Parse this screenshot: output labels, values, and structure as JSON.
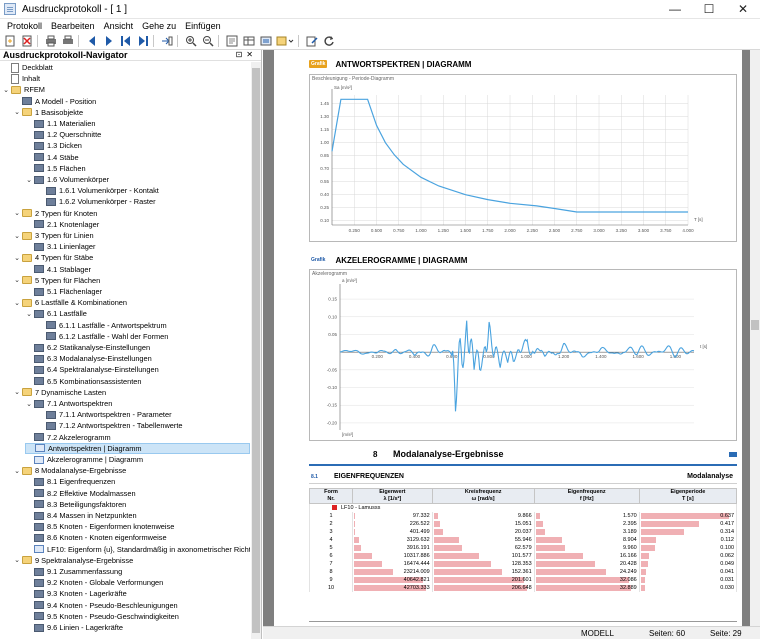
{
  "window": {
    "title": "Ausdruckprotokoll - [ 1 ]",
    "min": "—",
    "max": "☐",
    "close": "✕"
  },
  "menu": [
    "Protokoll",
    "Bearbeiten",
    "Ansicht",
    "Gehe zu",
    "Einfügen"
  ],
  "navigator": {
    "title": "Ausdruckprotokoll-Navigator",
    "items": [
      {
        "label": "Deckblatt",
        "level": 0,
        "icon": "page",
        "exp": ""
      },
      {
        "label": "Inhalt",
        "level": 0,
        "icon": "page",
        "exp": ""
      },
      {
        "label": "RFEM",
        "level": 0,
        "icon": "folder-rfem",
        "exp": "⌄"
      },
      {
        "label": "A Modell - Position",
        "level": 1,
        "icon": "tbl",
        "exp": ""
      },
      {
        "label": "1 Basisobjekte",
        "level": 1,
        "icon": "folder",
        "exp": "⌄"
      },
      {
        "label": "1.1 Materialien",
        "level": 2,
        "icon": "tbl",
        "exp": ""
      },
      {
        "label": "1.2 Querschnitte",
        "level": 2,
        "icon": "tbl",
        "exp": ""
      },
      {
        "label": "1.3 Dicken",
        "level": 2,
        "icon": "tbl",
        "exp": ""
      },
      {
        "label": "1.4 Stäbe",
        "level": 2,
        "icon": "tbl",
        "exp": ""
      },
      {
        "label": "1.5 Flächen",
        "level": 2,
        "icon": "tbl",
        "exp": ""
      },
      {
        "label": "1.6 Volumenkörper",
        "level": 2,
        "icon": "tbl",
        "exp": "⌄"
      },
      {
        "label": "1.6.1 Volumenkörper - Kontakt",
        "level": 3,
        "icon": "tbl",
        "exp": ""
      },
      {
        "label": "1.6.2 Volumenkörper - Raster",
        "level": 3,
        "icon": "tbl",
        "exp": ""
      },
      {
        "label": "2 Typen für Knoten",
        "level": 1,
        "icon": "folder",
        "exp": "⌄"
      },
      {
        "label": "2.1 Knotenlager",
        "level": 2,
        "icon": "tbl",
        "exp": ""
      },
      {
        "label": "3 Typen für Linien",
        "level": 1,
        "icon": "folder",
        "exp": "⌄"
      },
      {
        "label": "3.1 Linienlager",
        "level": 2,
        "icon": "tbl",
        "exp": ""
      },
      {
        "label": "4 Typen für Stäbe",
        "level": 1,
        "icon": "folder",
        "exp": "⌄"
      },
      {
        "label": "4.1 Stablager",
        "level": 2,
        "icon": "tbl",
        "exp": ""
      },
      {
        "label": "5 Typen für Flächen",
        "level": 1,
        "icon": "folder",
        "exp": "⌄"
      },
      {
        "label": "5.1 Flächenlager",
        "level": 2,
        "icon": "tbl",
        "exp": ""
      },
      {
        "label": "6 Lastfälle & Kombinationen",
        "level": 1,
        "icon": "folder",
        "exp": "⌄"
      },
      {
        "label": "6.1 Lastfälle",
        "level": 2,
        "icon": "tbl",
        "exp": "⌄"
      },
      {
        "label": "6.1.1 Lastfälle - Antwortspektrum",
        "level": 3,
        "icon": "tbl",
        "exp": ""
      },
      {
        "label": "6.1.2 Lastfälle - Wahl der Formen",
        "level": 3,
        "icon": "tbl",
        "exp": ""
      },
      {
        "label": "6.2 Statikanalyse-Einstellungen",
        "level": 2,
        "icon": "tbl",
        "exp": ""
      },
      {
        "label": "6.3 Modalanalyse-Einstellungen",
        "level": 2,
        "icon": "tbl",
        "exp": ""
      },
      {
        "label": "6.4 Spektralanalyse-Einstellungen",
        "level": 2,
        "icon": "tbl",
        "exp": ""
      },
      {
        "label": "6.5 Kombinationsassistenten",
        "level": 2,
        "icon": "tbl",
        "exp": ""
      },
      {
        "label": "7 Dynamische Lasten",
        "level": 1,
        "icon": "folder",
        "exp": "⌄"
      },
      {
        "label": "7.1 Antwortspektren",
        "level": 2,
        "icon": "tbl",
        "exp": "⌄"
      },
      {
        "label": "7.1.1 Antwortspektren - Parameter",
        "level": 3,
        "icon": "tbl",
        "exp": ""
      },
      {
        "label": "7.1.2 Antwortspektren - Tabellenwerte",
        "level": 3,
        "icon": "tbl",
        "exp": ""
      },
      {
        "label": "7.2 Akzelerogramm",
        "level": 2,
        "icon": "tbl",
        "exp": ""
      },
      {
        "label": "Antwortspektren | Diagramm",
        "level": 2,
        "icon": "gfx",
        "exp": "",
        "selected": true
      },
      {
        "label": "Akzelerogramme | Diagramm",
        "level": 2,
        "icon": "gfx",
        "exp": ""
      },
      {
        "label": "8 Modalanalyse-Ergebnisse",
        "level": 1,
        "icon": "folder",
        "exp": "⌄"
      },
      {
        "label": "8.1 Eigenfrequenzen",
        "level": 2,
        "icon": "tbl",
        "exp": ""
      },
      {
        "label": "8.2 Effektive Modalmassen",
        "level": 2,
        "icon": "tbl",
        "exp": ""
      },
      {
        "label": "8.3 Beteiligungsfaktoren",
        "level": 2,
        "icon": "tbl",
        "exp": ""
      },
      {
        "label": "8.4 Massen in Netzpunkten",
        "level": 2,
        "icon": "tbl",
        "exp": ""
      },
      {
        "label": "8.5 Knoten - Eigenformen knotenweise",
        "level": 2,
        "icon": "tbl",
        "exp": ""
      },
      {
        "label": "8.6 Knoten - Knoten eigenformweise",
        "level": 2,
        "icon": "tbl",
        "exp": ""
      },
      {
        "label": "LF10: Eigenform {u}, Standardmäßig in axonometrischer Richtung",
        "level": 2,
        "icon": "gfx",
        "exp": ""
      },
      {
        "label": "9 Spektralanalyse-Ergebnisse",
        "level": 1,
        "icon": "folder",
        "exp": "⌄"
      },
      {
        "label": "9.1 Zusammenfassung",
        "level": 2,
        "icon": "tbl",
        "exp": ""
      },
      {
        "label": "9.2 Knoten - Globale Verformungen",
        "level": 2,
        "icon": "tbl",
        "exp": ""
      },
      {
        "label": "9.3 Knoten - Lagerkräfte",
        "level": 2,
        "icon": "tbl",
        "exp": ""
      },
      {
        "label": "9.4 Knoten - Pseudo-Beschleunigungen",
        "level": 2,
        "icon": "tbl",
        "exp": ""
      },
      {
        "label": "9.5 Knoten - Pseudo-Geschwindigkeiten",
        "level": 2,
        "icon": "tbl",
        "exp": ""
      },
      {
        "label": "9.6 Linien - Lagerkräfte",
        "level": 2,
        "icon": "tbl",
        "exp": ""
      }
    ]
  },
  "document": {
    "sec1": {
      "tag": "Grafik",
      "title": "ANTWORTSPEKTREN | DIAGRAMM",
      "caption": "Beschleunigung - Periode-Diagramm",
      "xunit": "T\n[s]",
      "yunit": "Sa\n[m/s²]"
    },
    "sec2": {
      "tag": "Grafik",
      "title": "AKZELEROGRAMME | DIAGRAMM",
      "caption": "Akzelerogramm",
      "xunit": "t\n[s]",
      "yunit": "a\n[m/s²]",
      "bottomunit": "[m/s²]"
    },
    "sec8": {
      "num": "8",
      "title": "Modalanalyse-Ergebnisse"
    },
    "sec81": {
      "num": "8.1",
      "title": "EIGENFREQUENZEN",
      "right": "Modalanalyse"
    },
    "table": {
      "headers": [
        "Form\nNr.",
        "Eigenwert\nλ [1/s²]",
        "Kreisfrequenz\nω [rad/s]",
        "Eigenfrequenz\nf [Hz]",
        "Eigenperiode\nT [s]"
      ],
      "sub": "LF10 - Lamusss",
      "rows": [
        [
          "1",
          "97.332",
          "9.866",
          "1.570",
          "0.637"
        ],
        [
          "2",
          "226.522",
          "15.051",
          "2.395",
          "0.417"
        ],
        [
          "3",
          "401.499",
          "20.037",
          "3.189",
          "0.314"
        ],
        [
          "4",
          "3129.632",
          "55.946",
          "8.904",
          "0.112"
        ],
        [
          "5",
          "3916.191",
          "62.579",
          "9.960",
          "0.100"
        ],
        [
          "6",
          "10317.886",
          "101.577",
          "16.166",
          "0.062"
        ],
        [
          "7",
          "16474.444",
          "128.353",
          "20.428",
          "0.049"
        ],
        [
          "8",
          "23214.009",
          "152.361",
          "24.249",
          "0.041"
        ],
        [
          "9",
          "40642.821",
          "201.601",
          "32.086",
          "0.031"
        ],
        [
          "10",
          "42703.333",
          "206.648",
          "32.889",
          "0.030"
        ]
      ]
    }
  },
  "chart_data": [
    {
      "type": "line",
      "title": "ANTWORTSPEKTREN | DIAGRAMM",
      "xlabel": "T [s]",
      "ylabel": "Sa [m/s²]",
      "xlim": [
        0,
        4.0
      ],
      "ylim": [
        0.05,
        1.55
      ],
      "x_ticks": [
        "0.250",
        "0.500",
        "0.750",
        "1.000",
        "1.250",
        "1.500",
        "1.750",
        "2.000",
        "2.250",
        "2.500",
        "2.750",
        "3.000",
        "3.250",
        "3.500",
        "3.750",
        "4.000"
      ],
      "y_ticks": [
        "0.10",
        "0.25",
        "0.40",
        "0.55",
        "0.70",
        "0.85",
        "1.00",
        "1.15",
        "1.30",
        "1.45"
      ],
      "series": [
        {
          "x": [
            0,
            0.1,
            0.25,
            0.4,
            0.5,
            0.6,
            0.7,
            0.8,
            1.0,
            1.2,
            1.5,
            1.75,
            2.0,
            2.3,
            2.5,
            2.75,
            3.0,
            3.5,
            4.0
          ],
          "y": [
            0.9,
            1.5,
            1.5,
            1.5,
            1.2,
            1.0,
            0.86,
            0.75,
            0.6,
            0.5,
            0.4,
            0.343,
            0.3,
            0.27,
            0.24,
            0.2,
            0.2,
            0.2,
            0.2
          ]
        }
      ]
    },
    {
      "type": "line",
      "title": "AKZELEROGRAMME | DIAGRAMM",
      "xlabel": "t [s]",
      "ylabel": "a [m/s²]",
      "xlim": [
        0,
        1.9
      ],
      "ylim": [
        -0.22,
        0.17
      ],
      "x_ticks": [
        "0.200",
        "0.400",
        "0.600",
        "0.800",
        "1.000",
        "1.200",
        "1.400",
        "1.600",
        "1.800"
      ],
      "y_ticks": [
        "0.15",
        "0.10",
        "0.05",
        "",
        "-0.05",
        "-0.10",
        "-0.15",
        "-0.20"
      ],
      "series": [
        {
          "x": [
            0,
            0.1,
            0.2,
            0.3,
            0.4,
            0.5,
            0.6,
            0.62,
            0.65,
            0.68,
            0.7,
            0.72,
            0.75,
            0.78,
            0.8,
            0.83,
            0.86,
            0.9,
            0.93,
            0.96,
            1.0,
            1.05,
            1.1,
            1.15,
            1.2,
            1.3,
            1.4,
            1.5,
            1.6,
            1.7,
            1.8,
            1.9
          ],
          "y": [
            0,
            0.005,
            -0.005,
            0.01,
            -0.01,
            0.02,
            -0.01,
            -0.2,
            0.16,
            -0.1,
            0.1,
            -0.05,
            0.08,
            -0.04,
            0.1,
            -0.06,
            0.05,
            -0.03,
            0.04,
            -0.02,
            0.05,
            -0.02,
            0.02,
            -0.01,
            0.02,
            -0.01,
            0.01,
            -0.005,
            0.02,
            0.0,
            0.02,
            0.0
          ]
        }
      ]
    }
  ],
  "status": {
    "mode": "MODELL",
    "pages": "Seiten: 60",
    "page": "Seite: 29"
  }
}
